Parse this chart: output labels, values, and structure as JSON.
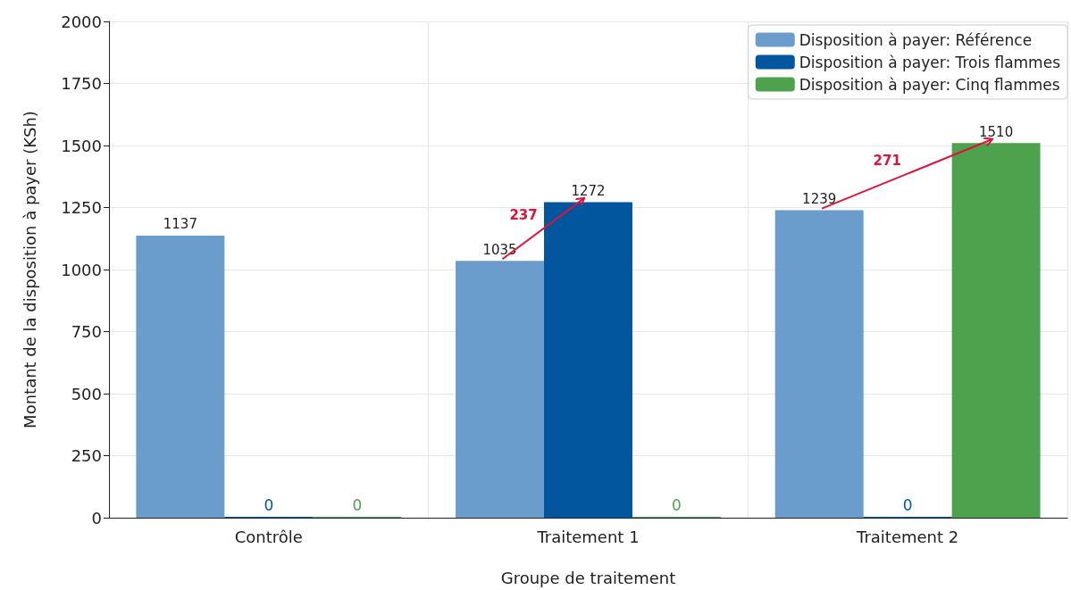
{
  "chart_data": {
    "type": "bar",
    "categories": [
      "Contrôle",
      "Traitement 1",
      "Traitement 2"
    ],
    "series": [
      {
        "name": "Disposition à payer: Référence",
        "color": "#6a9ccc",
        "values": [
          1137,
          1035,
          1239
        ]
      },
      {
        "name": "Disposition à payer: Trois flammes",
        "color": "#02569e",
        "values": [
          0,
          1272,
          0
        ]
      },
      {
        "name": "Disposition à payer: Cinq flammes",
        "color": "#4ea24e",
        "values": [
          0,
          0,
          1510
        ]
      }
    ],
    "xlabel": "Groupe de traitement",
    "ylabel": "Montant de la disposition à payer (KSh)",
    "ylim": [
      0,
      2000
    ],
    "yticks": [
      0,
      250,
      500,
      750,
      1000,
      1250,
      1500,
      1750,
      2000
    ],
    "annotations": [
      "237",
      "271"
    ],
    "data_labels": true,
    "grid": true,
    "legend": "top right"
  }
}
